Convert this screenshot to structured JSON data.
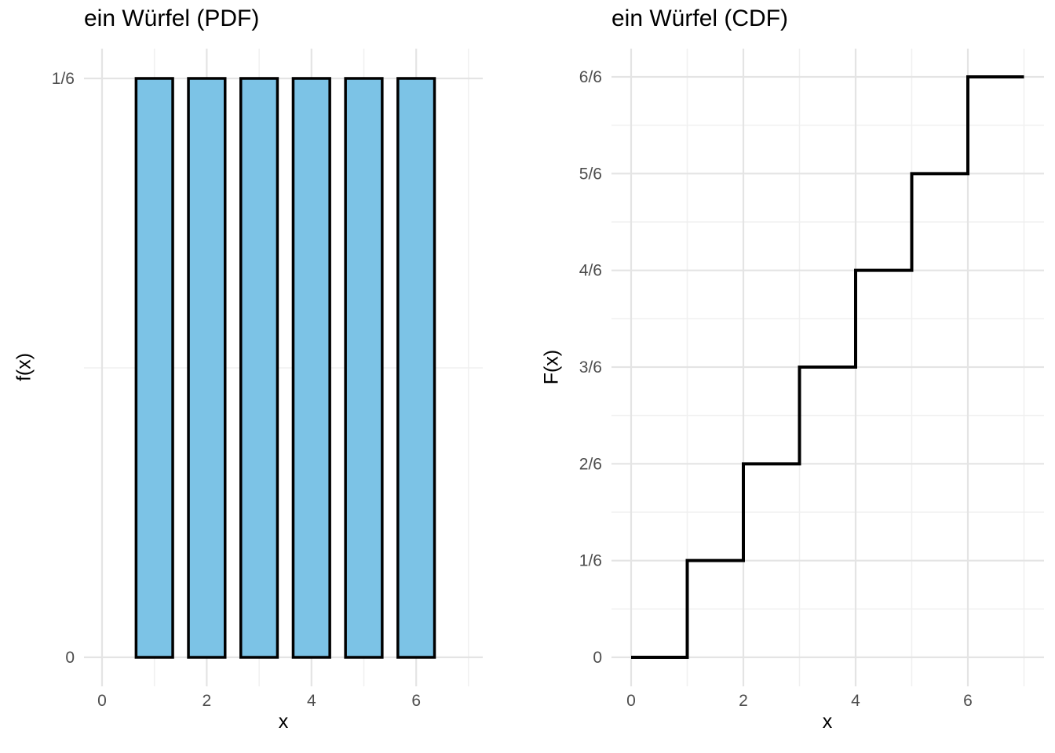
{
  "figure": {
    "background": "#FFFFFF",
    "style": {
      "grid_major_color": "#E4E4E4",
      "grid_minor_color": "#F0F0F0",
      "grid_major_width": 2.2,
      "grid_minor_width": 1.5,
      "tick_label_color": "#4D4D4D",
      "tick_label_size": 21,
      "text_color": "#000000"
    }
  },
  "chart_data": [
    {
      "type": "bar",
      "title": "ein Würfel (PDF)",
      "xlabel": "x",
      "ylabel": "f(x)",
      "categories": [
        1,
        2,
        3,
        4,
        5,
        6
      ],
      "values": [
        0.16667,
        0.16667,
        0.16667,
        0.16667,
        0.16667,
        0.16667
      ],
      "value_label_for_each_bar": "1/6",
      "bar_width": 0.7,
      "bar_fill": "#7CC3E6",
      "bar_stroke": "#000000",
      "bar_stroke_width": 3.5,
      "xlim": [
        -0.35,
        7.27
      ],
      "ylim": [
        -0.008,
        0.175
      ],
      "x_ticks": [
        {
          "v": 0,
          "label": "0"
        },
        {
          "v": 2,
          "label": "2"
        },
        {
          "v": 4,
          "label": "4"
        },
        {
          "v": 6,
          "label": "6"
        }
      ],
      "x_minor": [
        1,
        3,
        5,
        7
      ],
      "y_ticks": [
        {
          "v": 0,
          "label": "0"
        },
        {
          "v": 0.16667,
          "label": "1/6"
        }
      ],
      "y_minor": [
        0.08333
      ],
      "grid": "on",
      "legend": "none"
    },
    {
      "type": "step",
      "title": "ein Würfel (CDF)",
      "xlabel": "x",
      "ylabel": "F(x)",
      "x": [
        0,
        1,
        2,
        3,
        4,
        5,
        6
      ],
      "y": [
        0,
        0.16667,
        0.33333,
        0.5,
        0.66667,
        0.83333,
        1
      ],
      "y_value_labels": [
        "0",
        "1/6",
        "2/6",
        "3/6",
        "4/6",
        "5/6",
        "6/6"
      ],
      "x_end": 7,
      "line_color": "#000000",
      "line_width": 4,
      "xlim": [
        -0.35,
        7.36
      ],
      "ylim": [
        -0.05,
        1.05
      ],
      "x_ticks": [
        {
          "v": 0,
          "label": "0"
        },
        {
          "v": 2,
          "label": "2"
        },
        {
          "v": 4,
          "label": "4"
        },
        {
          "v": 6,
          "label": "6"
        }
      ],
      "x_minor": [
        1,
        3,
        5,
        7
      ],
      "y_ticks": [
        {
          "v": 0,
          "label": "0"
        },
        {
          "v": 0.16667,
          "label": "1/6"
        },
        {
          "v": 0.33333,
          "label": "2/6"
        },
        {
          "v": 0.5,
          "label": "3/6"
        },
        {
          "v": 0.66667,
          "label": "4/6"
        },
        {
          "v": 0.83333,
          "label": "5/6"
        },
        {
          "v": 1,
          "label": "6/6"
        }
      ],
      "y_minor": [
        0.08333,
        0.25,
        0.41667,
        0.58333,
        0.75,
        0.91667
      ],
      "grid": "on",
      "legend": "none"
    }
  ]
}
